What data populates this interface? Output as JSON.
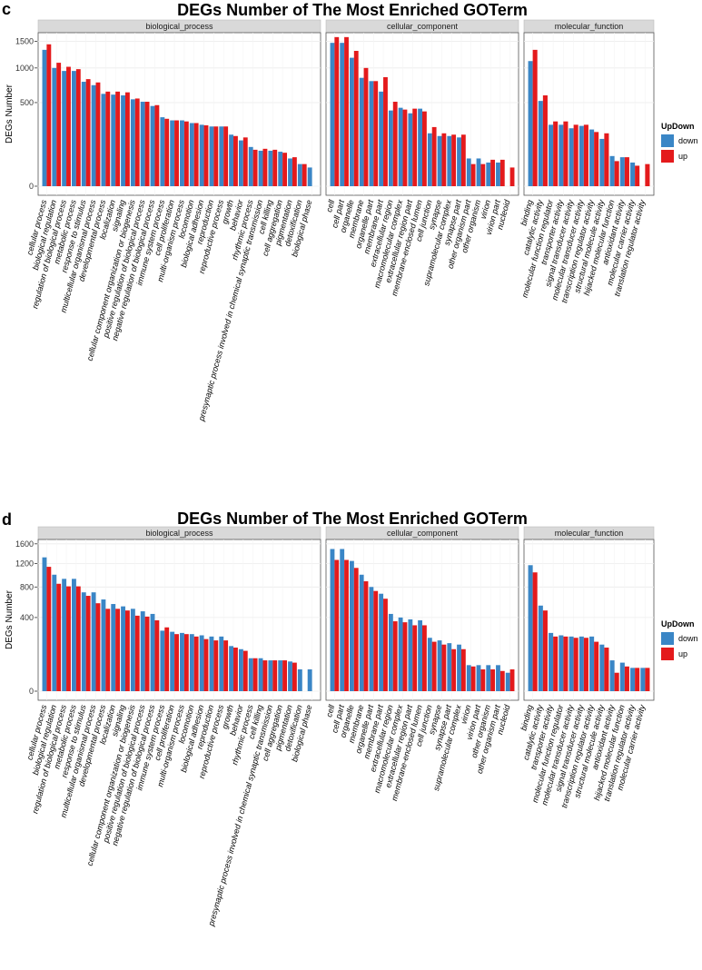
{
  "chart_data": [
    {
      "type": "bar",
      "panel_label": "c",
      "title": "DEGs Number of The Most Enriched GOTerm",
      "ylabel": "DEGs Number",
      "y_ticks": [
        0,
        500,
        1000,
        1500
      ],
      "y_scale": "sqrt",
      "legend": {
        "title": "UpDown",
        "entries": [
          "down",
          "up"
        ],
        "placement": "right"
      },
      "colors": {
        "down": "#3a86c6",
        "up": "#e41a1c"
      },
      "facets": [
        {
          "name": "biological_process",
          "categories": [
            "cellular process",
            "biological regulation",
            "regulation of biological process",
            "metabolic process",
            "response to stimulus",
            "multicellular organismal process",
            "developmental process",
            "localization",
            "signaling",
            "cellular component organization or biogenesis",
            "positive regulation of biological process",
            "negative regulation of biological process",
            "immune system process",
            "cell proliferation",
            "multi-organism process",
            "locomotion",
            "biological adhesion",
            "reproduction",
            "reproductive process",
            "growth",
            "behavior",
            "rhythmic process",
            "presynaptic process involved in chemical synaptic transmission",
            "cell killing",
            "cell aggregation",
            "pigmentation",
            "detoxification",
            "biological phase"
          ],
          "series": [
            {
              "name": "down",
              "values": [
                1330,
                1000,
                950,
                950,
                780,
                730,
                610,
                600,
                590,
                540,
                510,
                460,
                340,
                310,
                310,
                285,
                270,
                255,
                255,
                190,
                150,
                110,
                90,
                90,
                85,
                55,
                35,
                25
              ]
            },
            {
              "name": "up",
              "values": [
                1440,
                1090,
                1020,
                980,
                820,
                770,
                640,
                640,
                630,
                550,
                510,
                470,
                325,
                310,
                300,
                285,
                265,
                255,
                255,
                180,
                170,
                95,
                100,
                95,
                80,
                60,
                35,
                0
              ]
            }
          ]
        },
        {
          "name": "cellular_component",
          "categories": [
            "cell",
            "cell part",
            "organelle",
            "membrane",
            "organelle part",
            "membrane part",
            "extracellular region",
            "macromolecular complex",
            "extracellular region part",
            "membrane-enclosed lumen",
            "cell junction",
            "synapse",
            "supramolecular complex",
            "synapse part",
            "other organism part",
            "other organism",
            "virion",
            "virion part",
            "nucleoid"
          ],
          "series": [
            {
              "name": "down",
              "values": [
                1470,
                1470,
                1180,
                840,
                790,
                640,
                410,
                440,
                380,
                430,
                200,
                180,
                180,
                170,
                55,
                55,
                40,
                40,
                0
              ]
            },
            {
              "name": "up",
              "values": [
                1590,
                1590,
                1310,
                1000,
                790,
                850,
                510,
                420,
                430,
                400,
                250,
                200,
                190,
                190,
                35,
                35,
                50,
                50,
                25
              ]
            }
          ]
        },
        {
          "name": "molecular_function",
          "categories": [
            "binding",
            "catalytic activity",
            "molecular function regulator",
            "transporter activity",
            "signal transducer activity",
            "molecular transducer activity",
            "transcription regulator activity",
            "structural molecule activity",
            "hijacked molecular function",
            "antioxidant activity",
            "molecular carrier activity",
            "translation regulator activity"
          ],
          "series": [
            {
              "name": "down",
              "values": [
                1120,
                520,
                270,
                270,
                240,
                260,
                230,
                160,
                65,
                60,
                40,
                0
              ]
            },
            {
              "name": "up",
              "values": [
                1330,
                590,
                300,
                300,
                270,
                270,
                210,
                200,
                45,
                60,
                30,
                35
              ]
            }
          ]
        }
      ]
    },
    {
      "type": "bar",
      "panel_label": "d",
      "title": "DEGs Number of The Most Enriched GOTerm",
      "ylabel": "DEGs Number",
      "y_ticks": [
        0,
        400,
        800,
        1200,
        1600
      ],
      "y_scale": "sqrt",
      "legend": {
        "title": "UpDown",
        "entries": [
          "down",
          "up"
        ],
        "placement": "right"
      },
      "colors": {
        "down": "#3a86c6",
        "up": "#e41a1c"
      },
      "facets": [
        {
          "name": "biological_process",
          "categories": [
            "cellular process",
            "biological regulation",
            "regulation of biological process",
            "metabolic process",
            "response to stimulus",
            "multicellular organismal process",
            "developmental process",
            "localization",
            "signaling",
            "cellular component organization or biogenesis",
            "positive regulation of biological process",
            "negative regulation of biological process",
            "immune system process",
            "cell proliferation",
            "multi-organism process",
            "locomotion",
            "biological adhesion",
            "reproduction",
            "reproductive process",
            "growth",
            "behavior",
            "rhythmic process",
            "cell killing",
            "presynaptic process involved in chemical synaptic transmission",
            "cell aggregation",
            "pigmentation",
            "detoxification",
            "biological phase"
          ],
          "series": [
            {
              "name": "down",
              "values": [
                1320,
                1000,
                930,
                930,
                720,
                720,
                620,
                560,
                530,
                500,
                470,
                440,
                270,
                260,
                250,
                240,
                230,
                220,
                220,
                150,
                130,
                80,
                80,
                70,
                70,
                65,
                35,
                35
              ]
            },
            {
              "name": "up",
              "values": [
                1140,
                850,
                810,
                810,
                670,
                570,
                500,
                500,
                480,
                420,
                410,
                370,
                300,
                240,
                240,
                220,
                200,
                190,
                190,
                140,
                120,
                80,
                70,
                70,
                70,
                60,
                0,
                0
              ]
            }
          ]
        },
        {
          "name": "cellular_component",
          "categories": [
            "cell",
            "cell part",
            "organelle",
            "membrane",
            "organelle part",
            "membrane part",
            "extracellular region",
            "macromolecular complex",
            "extracellular region part",
            "membrane-enclosed lumen",
            "cell junction",
            "synapse",
            "synapse part",
            "supramolecular complex",
            "virion",
            "virion part",
            "other organism",
            "other organism part",
            "nucleoid"
          ],
          "series": [
            {
              "name": "down",
              "values": [
                1490,
                1490,
                1250,
                1000,
                800,
                700,
                440,
                400,
                380,
                370,
                210,
                190,
                170,
                160,
                50,
                50,
                50,
                50,
                25
              ]
            },
            {
              "name": "up",
              "values": [
                1270,
                1270,
                1120,
                890,
                740,
                630,
                360,
                350,
                320,
                320,
                180,
                160,
                130,
                130,
                45,
                35,
                35,
                30,
                35
              ]
            }
          ]
        },
        {
          "name": "molecular_function",
          "categories": [
            "binding",
            "catalytic activity",
            "transporter activity",
            "molecular function regulator",
            "molecular transducer activity",
            "signal transducer activity",
            "transcription regulator activity",
            "structural molecule activity",
            "antioxidant activity",
            "hijacked molecular function",
            "translation regulator activity",
            "molecular carrier activity"
          ],
          "series": [
            {
              "name": "down",
              "values": [
                1170,
                540,
                250,
                230,
                220,
                220,
                220,
                160,
                70,
                60,
                40,
                40
              ]
            },
            {
              "name": "up",
              "values": [
                1040,
                480,
                220,
                220,
                210,
                210,
                180,
                140,
                25,
                45,
                40,
                40
              ]
            }
          ]
        }
      ]
    }
  ]
}
